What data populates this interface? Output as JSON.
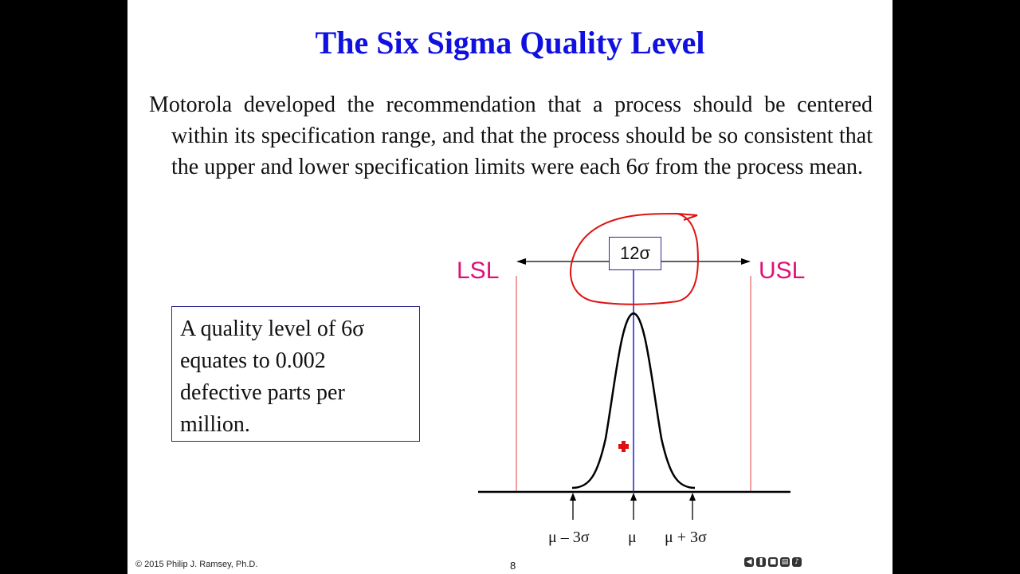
{
  "slide": {
    "title": "The Six Sigma Quality Level",
    "body": "Motorola developed the recommendation that a process should be centered within its specification range, and that the process should be so consistent that the upper and lower specification limits were each 6σ from the process mean.",
    "box_text": "A quality level of 6σ equates to 0.002 defective parts per million.",
    "lsl_label": "LSL",
    "usl_label": "USL",
    "range_label": "12σ",
    "ticks": {
      "minus": "μ – 3σ",
      "mean": "μ",
      "plus": "μ  +  3σ"
    },
    "footer": {
      "copyright": "© 2015 Philip J. Ramsey, Ph.D.",
      "page": "8"
    },
    "colors": {
      "title": "#1010e0",
      "spec_limits": "#e0107a",
      "annotation": "#e01010",
      "mean_line": "#2020d0"
    }
  },
  "navigation": {
    "icons": [
      "back-icon",
      "pause-icon",
      "stop-icon",
      "document-icon",
      "volume-icon"
    ]
  }
}
